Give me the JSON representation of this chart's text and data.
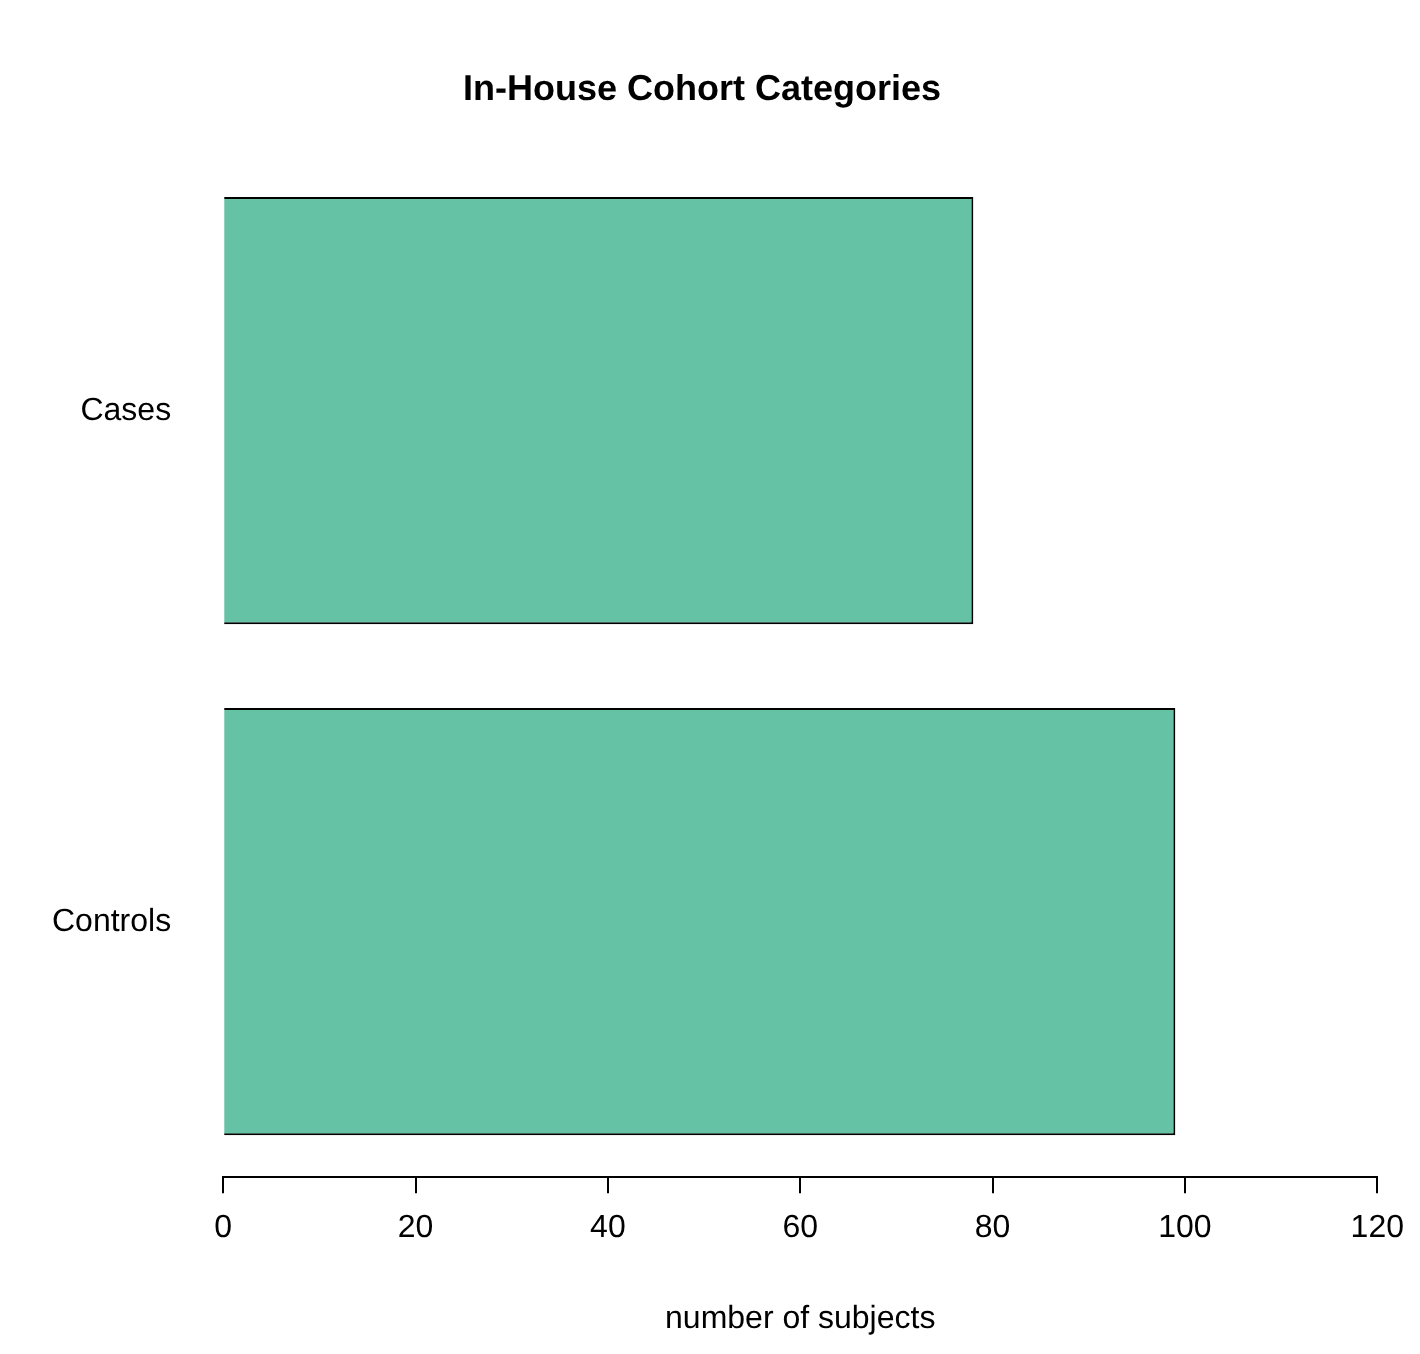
{
  "chart_data": {
    "type": "bar",
    "title": "In-House Cohort Categories",
    "xlabel": "number of subjects",
    "orientation": "horizontal",
    "categories": [
      "Cases",
      "Controls"
    ],
    "values": [
      78,
      99
    ],
    "color": "#66c2a5",
    "xlim": [
      0,
      120
    ],
    "xticks": [
      0,
      20,
      40,
      60,
      80,
      100,
      120
    ],
    "grid": false,
    "legend": false
  }
}
